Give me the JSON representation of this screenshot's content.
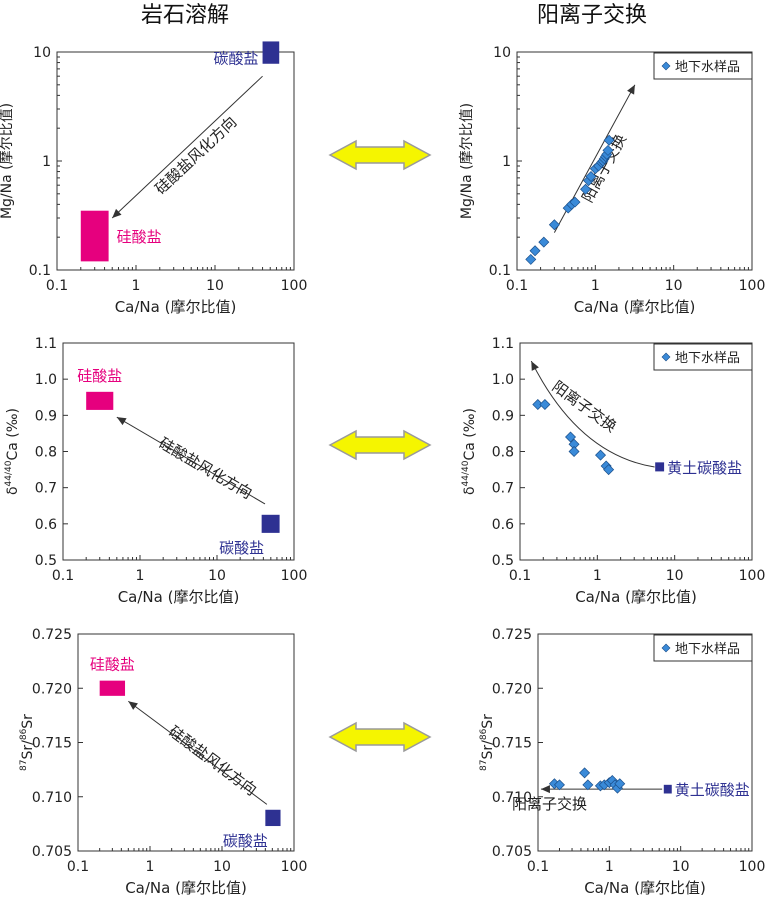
{
  "headers": {
    "left": "岩石溶解",
    "right": "阳离子交换"
  },
  "colors": {
    "carbonate": "#2e3192",
    "silicate": "#e6007e",
    "sample": "#3a8ad8",
    "arrow_fill": "#f5f500",
    "arrow_stroke": "#9a9a9a"
  },
  "x_label": "Ca/Na (摩尔比值)",
  "legend_label": "地下水样品",
  "icons": {
    "double_arrow": "yellow-double-arrow-icon",
    "legend_marker": "blue-diamond-icon"
  },
  "chart_data": [
    {
      "id": "left-top",
      "type": "scatter",
      "xscale": "log",
      "xlim": [
        0.1,
        100
      ],
      "xticks": [
        "0.1",
        "1",
        "10",
        "100"
      ],
      "yscale": "log",
      "ylim": [
        0.1,
        10
      ],
      "yticks": [
        "0.1",
        "1",
        "10"
      ],
      "xlabel": "Ca/Na (摩尔比值)",
      "ylabel": "Mg/Na (摩尔比值)",
      "endmembers": [
        {
          "name": "碳酸盐",
          "kind": "carbonate",
          "x": [
            40,
            65
          ],
          "y": [
            7.8,
            12.5
          ]
        },
        {
          "name": "硅酸盐",
          "kind": "silicate",
          "x": [
            0.2,
            0.45
          ],
          "y": [
            0.12,
            0.35
          ]
        }
      ],
      "arrows": [
        {
          "from": [
            40,
            6
          ],
          "to": [
            0.5,
            0.3
          ],
          "label": "硅酸盐风化方向"
        }
      ],
      "samples": []
    },
    {
      "id": "right-top",
      "type": "scatter",
      "xscale": "log",
      "xlim": [
        0.1,
        100
      ],
      "xticks": [
        "0.1",
        "1",
        "10",
        "100"
      ],
      "yscale": "log",
      "ylim": [
        0.1,
        10
      ],
      "yticks": [
        "0.1",
        "1",
        "10"
      ],
      "xlabel": "Ca/Na (摩尔比值)",
      "ylabel": "Mg/Na (摩尔比值)",
      "legend": "地下水样品",
      "endmembers": [],
      "arrows": [
        {
          "from": [
            0.3,
            0.22
          ],
          "to": [
            3.2,
            5.0
          ],
          "label": "阳离子交换"
        }
      ],
      "samples": [
        {
          "x": 0.15,
          "y": 0.125
        },
        {
          "x": 0.17,
          "y": 0.15
        },
        {
          "x": 0.22,
          "y": 0.18
        },
        {
          "x": 0.3,
          "y": 0.26
        },
        {
          "x": 0.45,
          "y": 0.37
        },
        {
          "x": 0.5,
          "y": 0.4
        },
        {
          "x": 0.55,
          "y": 0.42
        },
        {
          "x": 0.75,
          "y": 0.55
        },
        {
          "x": 0.82,
          "y": 0.66
        },
        {
          "x": 0.88,
          "y": 0.72
        },
        {
          "x": 1.0,
          "y": 0.85
        },
        {
          "x": 1.1,
          "y": 0.9
        },
        {
          "x": 1.2,
          "y": 0.97
        },
        {
          "x": 1.25,
          "y": 1.0
        },
        {
          "x": 1.3,
          "y": 1.05
        },
        {
          "x": 1.35,
          "y": 1.1
        },
        {
          "x": 1.4,
          "y": 1.15
        },
        {
          "x": 1.45,
          "y": 1.25
        },
        {
          "x": 1.5,
          "y": 1.55
        }
      ]
    },
    {
      "id": "left-mid",
      "type": "scatter",
      "xscale": "log",
      "xlim": [
        0.1,
        100
      ],
      "xticks": [
        "0.1",
        "1",
        "10",
        "100"
      ],
      "yscale": "linear",
      "ylim": [
        0.5,
        1.1
      ],
      "yticks": [
        "0.5",
        "0.6",
        "0.7",
        "0.8",
        "0.9",
        "1.0",
        "1.1"
      ],
      "xlabel": "Ca/Na (摩尔比值)",
      "ylabel": "δ44/40Ca (‰)",
      "endmembers": [
        {
          "name": "硅酸盐",
          "kind": "silicate",
          "x": [
            0.2,
            0.45
          ],
          "y": [
            0.915,
            0.965
          ]
        },
        {
          "name": "碳酸盐",
          "kind": "carbonate",
          "x": [
            38,
            65
          ],
          "y": [
            0.575,
            0.625
          ]
        }
      ],
      "arrows": [
        {
          "from": [
            42,
            0.655
          ],
          "to": [
            0.5,
            0.895
          ],
          "label": "硅酸盐风化方向"
        }
      ],
      "samples": []
    },
    {
      "id": "right-mid",
      "type": "scatter",
      "xscale": "log",
      "xlim": [
        0.1,
        100
      ],
      "xticks": [
        "0.1",
        "1",
        "10",
        "100"
      ],
      "yscale": "linear",
      "ylim": [
        0.5,
        1.1
      ],
      "yticks": [
        "0.5",
        "0.6",
        "0.7",
        "0.8",
        "0.9",
        "1.0",
        "1.1"
      ],
      "xlabel": "Ca/Na (摩尔比值)",
      "ylabel": "δ44/40Ca (‰)",
      "legend": "地下水样品",
      "endmembers": [
        {
          "name": "黄土碳酸盐",
          "kind": "carbonate",
          "x": [
            5.6,
            7.3
          ],
          "y": [
            0.745,
            0.77
          ]
        }
      ],
      "curve": {
        "points": [
          [
            5.5,
            0.757
          ],
          [
            1.2,
            0.78
          ],
          [
            0.35,
            0.88
          ],
          [
            0.14,
            1.05
          ]
        ],
        "label": "阳离子交换"
      },
      "samples": [
        {
          "x": 0.17,
          "y": 0.93
        },
        {
          "x": 0.21,
          "y": 0.93
        },
        {
          "x": 0.45,
          "y": 0.84
        },
        {
          "x": 0.5,
          "y": 0.82
        },
        {
          "x": 0.5,
          "y": 0.8
        },
        {
          "x": 1.1,
          "y": 0.79
        },
        {
          "x": 1.3,
          "y": 0.76
        },
        {
          "x": 1.4,
          "y": 0.75
        }
      ]
    },
    {
      "id": "left-bot",
      "type": "scatter",
      "xscale": "log",
      "xlim": [
        0.1,
        100
      ],
      "xticks": [
        "0.1",
        "1",
        "10",
        "100"
      ],
      "yscale": "linear",
      "ylim": [
        0.705,
        0.725
      ],
      "yticks": [
        "0.705",
        "0.710",
        "0.715",
        "0.720",
        "0.725"
      ],
      "xlabel": "Ca/Na (摩尔比值)",
      "ylabel": "87Sr/86Sr",
      "endmembers": [
        {
          "name": "硅酸盐",
          "kind": "silicate",
          "x": [
            0.2,
            0.45
          ],
          "y": [
            0.7193,
            0.7207
          ]
        },
        {
          "name": "碳酸盐",
          "kind": "carbonate",
          "x": [
            40,
            65
          ],
          "y": [
            0.7073,
            0.7088
          ]
        }
      ],
      "arrows": [
        {
          "from": [
            42,
            0.7093
          ],
          "to": [
            0.5,
            0.7188
          ],
          "label": "硅酸盐风化方向"
        }
      ],
      "samples": []
    },
    {
      "id": "right-bot",
      "type": "scatter",
      "xscale": "log",
      "xlim": [
        0.1,
        100
      ],
      "xticks": [
        "0.1",
        "1",
        "10",
        "100"
      ],
      "yscale": "linear",
      "ylim": [
        0.705,
        0.725
      ],
      "yticks": [
        "0.705",
        "0.710",
        "0.715",
        "0.720",
        "0.725"
      ],
      "xlabel": "Ca/Na (摩尔比值)",
      "ylabel": "87Sr/86Sr",
      "legend": "地下水样品",
      "endmembers": [
        {
          "name": "黄土碳酸盐",
          "kind": "carbonate",
          "x": [
            5.8,
            7.5
          ],
          "y": [
            0.7103,
            0.7111
          ]
        }
      ],
      "arrows": [
        {
          "from": [
            5.5,
            0.7107
          ],
          "to": [
            0.11,
            0.7107
          ],
          "label": "阳离子交换"
        }
      ],
      "samples": [
        {
          "x": 0.17,
          "y": 0.7112
        },
        {
          "x": 0.2,
          "y": 0.7111
        },
        {
          "x": 0.45,
          "y": 0.7122
        },
        {
          "x": 0.5,
          "y": 0.7111
        },
        {
          "x": 0.75,
          "y": 0.711
        },
        {
          "x": 0.85,
          "y": 0.7111
        },
        {
          "x": 1.0,
          "y": 0.7113
        },
        {
          "x": 1.1,
          "y": 0.7115
        },
        {
          "x": 1.2,
          "y": 0.7111
        },
        {
          "x": 1.3,
          "y": 0.7108
        },
        {
          "x": 1.4,
          "y": 0.7112
        }
      ]
    }
  ]
}
